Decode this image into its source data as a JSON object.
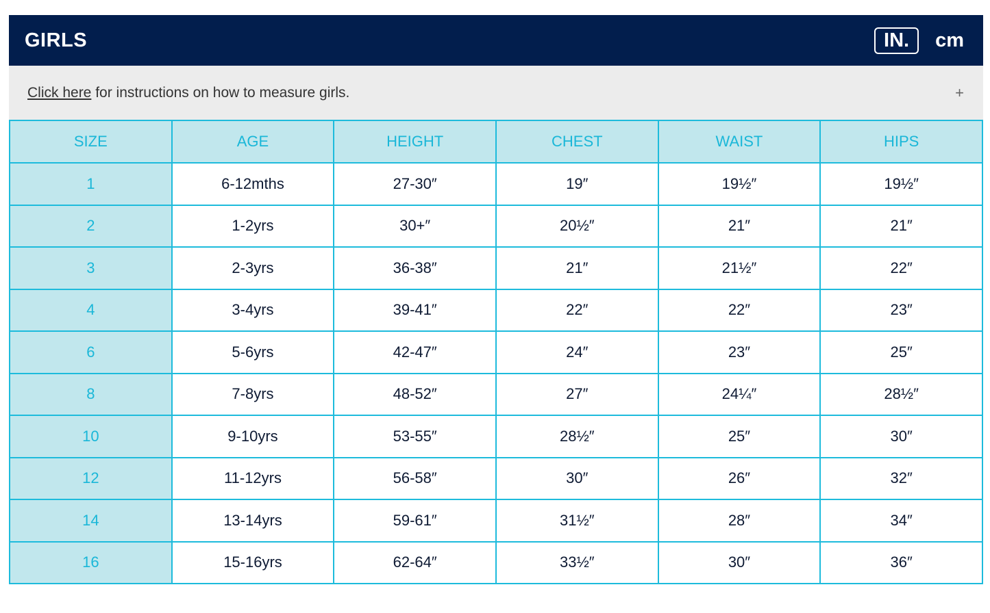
{
  "header": {
    "title": "GIRLS",
    "units": [
      {
        "label": "IN.",
        "active": true
      },
      {
        "label": "cm",
        "active": false
      }
    ]
  },
  "info": {
    "link": "Click here",
    "text": " for instructions on how to measure girls.",
    "expand_icon": "plus-icon",
    "expand_symbol": "+"
  },
  "table": {
    "columns": [
      "SIZE",
      "AGE",
      "HEIGHT",
      "CHEST",
      "WAIST",
      "HIPS"
    ],
    "rows": [
      [
        "1",
        "6-12mths",
        "27-30″",
        "19″",
        "19½″",
        "19½″"
      ],
      [
        "2",
        "1-2yrs",
        "30+″",
        "20½″",
        "21″",
        "21″"
      ],
      [
        "3",
        "2-3yrs",
        "36-38″",
        "21″",
        "21½″",
        "22″"
      ],
      [
        "4",
        "3-4yrs",
        "39-41″",
        "22″",
        "22″",
        "23″"
      ],
      [
        "6",
        "5-6yrs",
        "42-47″",
        "24″",
        "23″",
        "25″"
      ],
      [
        "8",
        "7-8yrs",
        "48-52″",
        "27″",
        "24¼″",
        "28½″"
      ],
      [
        "10",
        "9-10yrs",
        "53-55″",
        "28½″",
        "25″",
        "30″"
      ],
      [
        "12",
        "11-12yrs",
        "56-58″",
        "30″",
        "26″",
        "32″"
      ],
      [
        "14",
        "13-14yrs",
        "59-61″",
        "31½″",
        "28″",
        "34″"
      ],
      [
        "16",
        "15-16yrs",
        "62-64″",
        "33½″",
        "30″",
        "36″"
      ]
    ]
  },
  "colors": {
    "header_bg": "#021e4d",
    "accent": "#1ab7d8",
    "size_bg": "#c1e7ed",
    "info_bg": "#ececec"
  }
}
